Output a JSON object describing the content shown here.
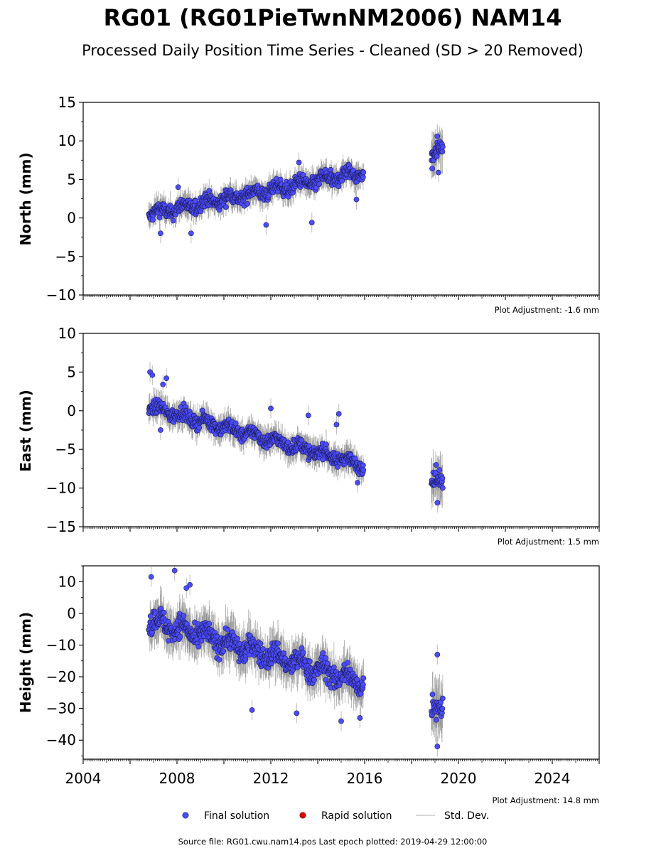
{
  "title": "RG01 (RG01PieTwnNM2006) NAM14",
  "subtitle": "Processed Daily Position Time Series - Cleaned (SD > 20 Removed)",
  "footer": "Source file: RG01.cwu.nam14.pos  Last epoch plotted: 2019-04-29 12:00:00",
  "colors": {
    "final": "#4b4bff",
    "rapid": "#e00000",
    "stddev": "#bbbbbb",
    "stddev_dense": "#555555"
  },
  "legend": {
    "placement": "bottom-center",
    "items": [
      "Final solution",
      "Rapid solution",
      "Std. Dev."
    ]
  },
  "chart_data": [
    {
      "type": "scatter",
      "ylabel": "North (mm)",
      "xlim": [
        2004,
        2026
      ],
      "ylim": [
        -10,
        15
      ],
      "yticks": [
        -10,
        -5,
        0,
        5,
        10,
        15
      ],
      "xticks": [],
      "adjustment": "Plot Adjustment: -1.6 mm",
      "segments": [
        {
          "start": 2006.8,
          "end": 2015.95,
          "y_start": 0.5,
          "y_end": 6.0,
          "noise": 1.2,
          "sd": 1.4
        },
        {
          "start": 2018.85,
          "end": 2019.33,
          "y_start": 8.3,
          "y_end": 8.8,
          "noise": 1.1,
          "sd": 2.2
        }
      ],
      "outliers": [
        [
          2007.3,
          -2.0
        ],
        [
          2008.05,
          4.0
        ],
        [
          2008.6,
          -2.0
        ],
        [
          2011.8,
          -0.9
        ],
        [
          2013.2,
          7.2
        ],
        [
          2013.75,
          -0.6
        ],
        [
          2015.65,
          2.4
        ],
        [
          2019.1,
          10.6
        ],
        [
          2018.88,
          6.4
        ],
        [
          2019.15,
          5.9
        ]
      ]
    },
    {
      "type": "scatter",
      "ylabel": "East (mm)",
      "xlim": [
        2004,
        2026
      ],
      "ylim": [
        -15,
        10
      ],
      "yticks": [
        -15,
        -10,
        -5,
        0,
        5,
        10
      ],
      "xticks": [],
      "adjustment": "Plot Adjustment: 1.5 mm",
      "segments": [
        {
          "start": 2006.8,
          "end": 2015.95,
          "y_start": 0.5,
          "y_end": -7.0,
          "noise": 1.1,
          "sd": 1.5
        },
        {
          "start": 2018.85,
          "end": 2019.33,
          "y_start": -8.6,
          "y_end": -9.8,
          "noise": 1.2,
          "sd": 2.6
        }
      ],
      "outliers": [
        [
          2006.85,
          5.0
        ],
        [
          2006.95,
          4.6
        ],
        [
          2007.55,
          4.2
        ],
        [
          2007.4,
          3.4
        ],
        [
          2007.3,
          -2.5
        ],
        [
          2012.0,
          0.3
        ],
        [
          2013.6,
          -0.6
        ],
        [
          2014.9,
          -0.4
        ],
        [
          2014.8,
          -1.8
        ],
        [
          2015.7,
          -9.3
        ],
        [
          2019.1,
          -11.9
        ],
        [
          2019.05,
          -7.0
        ]
      ]
    },
    {
      "type": "scatter",
      "ylabel": "Height (mm)",
      "xlim": [
        2004,
        2026
      ],
      "ylim": [
        -46,
        15
      ],
      "yticks": [
        -40,
        -30,
        -20,
        -10,
        0,
        10
      ],
      "xticks": [
        2004,
        2008,
        2012,
        2016,
        2020,
        2024
      ],
      "adjustment": "Plot Adjustment: 14.8 mm",
      "segments": [
        {
          "start": 2006.8,
          "end": 2015.95,
          "y_start": -2.0,
          "y_end": -22.0,
          "noise": 4.5,
          "sd": 6.0
        },
        {
          "start": 2018.85,
          "end": 2019.33,
          "y_start": -27.0,
          "y_end": -33.0,
          "noise": 5.5,
          "sd": 8.0
        }
      ],
      "outliers": [
        [
          2006.9,
          11.5
        ],
        [
          2007.9,
          13.5
        ],
        [
          2008.55,
          9.0
        ],
        [
          2008.4,
          8.0
        ],
        [
          2015.0,
          -34.0
        ],
        [
          2015.8,
          -33.0
        ],
        [
          2019.1,
          -13.0
        ],
        [
          2019.1,
          -42.0
        ],
        [
          2013.1,
          -31.5
        ],
        [
          2011.2,
          -30.5
        ]
      ]
    }
  ]
}
